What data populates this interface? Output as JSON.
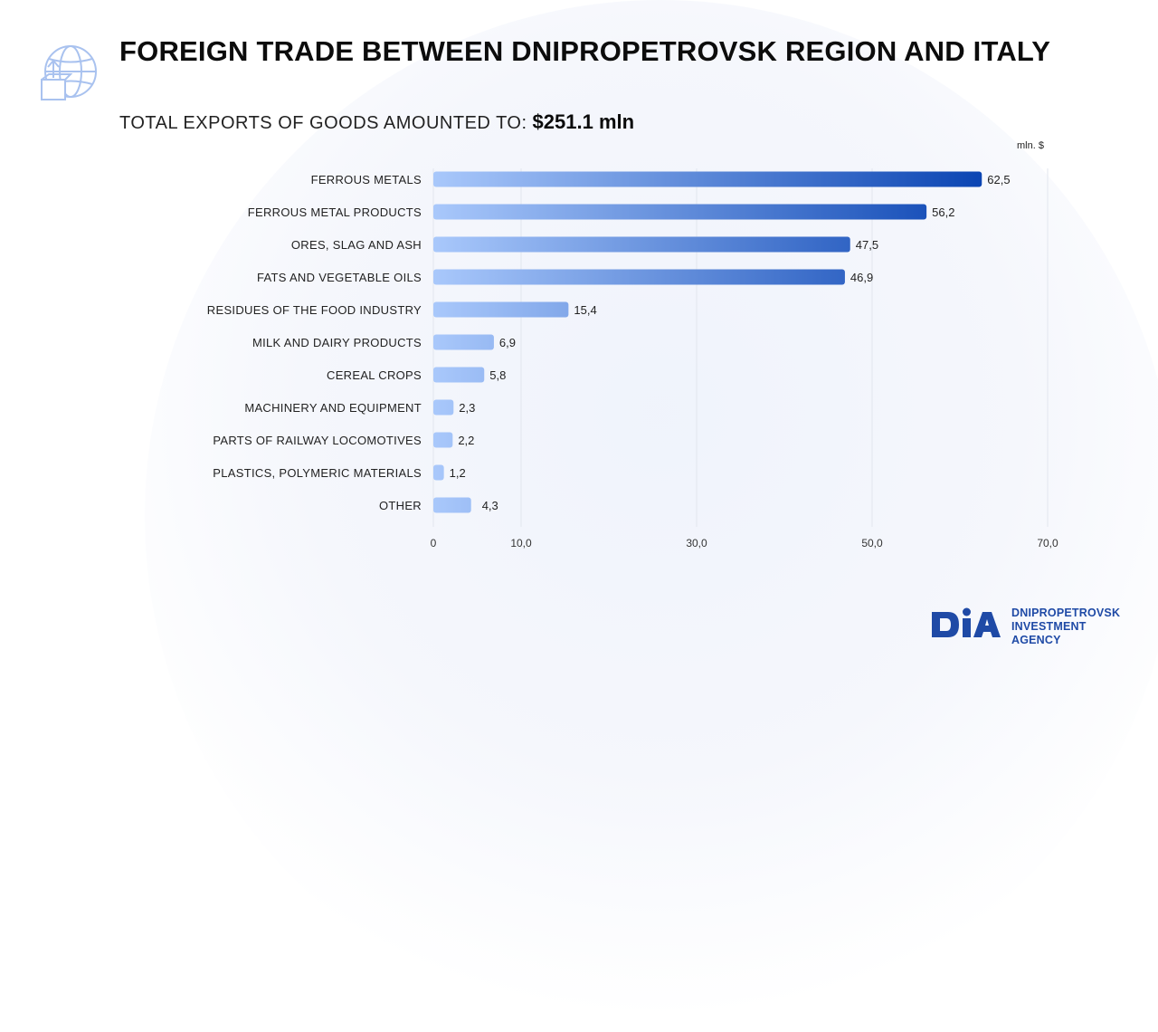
{
  "header": {
    "title": "FOREIGN TRADE BETWEEN DNIPROPETROVSK REGION AND ITALY",
    "subtitle_label": "TOTAL EXPORTS OF GOODS AMOUNTED TO:",
    "subtitle_value": "$251.1 mln"
  },
  "logo": {
    "mark": "DIA",
    "line1": "DNIPROPETROVSK",
    "line2": "INVESTMENT AGENCY"
  },
  "colors": {
    "bar_light": "#a9c8fb",
    "bar_dark": "#0b45b3",
    "accent": "#1f4aa6",
    "grid": "#e2e6ee"
  },
  "icons": [
    "globe-export-icon"
  ],
  "chart_data": {
    "type": "bar",
    "orientation": "horizontal",
    "unit": "mln. $",
    "categories": [
      "FERROUS METALS",
      "FERROUS METAL PRODUCTS",
      "ORES, SLAG AND ASH",
      "FATS AND VEGETABLE OILS",
      "RESIDUES OF THE FOOD INDUSTRY",
      "MILK AND DAIRY PRODUCTS",
      "CEREAL CROPS",
      "MACHINERY AND EQUIPMENT",
      "PARTS OF RAILWAY LOCOMOTIVES",
      "PLASTICS, POLYMERIC MATERIALS",
      "OTHER"
    ],
    "values": [
      62.5,
      56.2,
      47.5,
      46.9,
      15.4,
      6.9,
      5.8,
      2.3,
      2.2,
      1.2,
      4.3
    ],
    "value_labels": [
      "62,5",
      "56,2",
      "47,5",
      "46,9",
      "15,4",
      "6,9",
      "5,8",
      "2,3",
      "2,2",
      "1,2",
      "4,3"
    ],
    "x_ticks": [
      {
        "value": 0,
        "label": "0"
      },
      {
        "value": 10,
        "label": "10,0"
      },
      {
        "value": 30,
        "label": "30,0"
      },
      {
        "value": 50,
        "label": "50,0"
      },
      {
        "value": 70,
        "label": "70,0"
      }
    ],
    "grid": true
  }
}
